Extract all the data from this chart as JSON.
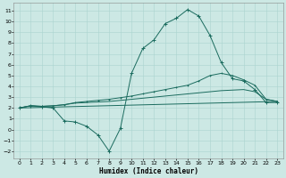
{
  "xlabel": "Humidex (Indice chaleur)",
  "bg_color": "#cce8e4",
  "grid_color": "#aad4cf",
  "line_color": "#1a6b5e",
  "xlim": [
    -0.5,
    23.5
  ],
  "ylim": [
    -2.7,
    11.7
  ],
  "xticks": [
    0,
    1,
    2,
    3,
    4,
    5,
    6,
    7,
    8,
    9,
    10,
    11,
    12,
    13,
    14,
    15,
    16,
    17,
    18,
    19,
    20,
    21,
    22,
    23
  ],
  "yticks": [
    -2,
    -1,
    0,
    1,
    2,
    3,
    4,
    5,
    6,
    7,
    8,
    9,
    10,
    11
  ],
  "line1_x": [
    0,
    1,
    2,
    3,
    4,
    5,
    6,
    7,
    8,
    9,
    10,
    11,
    12,
    13,
    14,
    15,
    16,
    17,
    18,
    19,
    20,
    21,
    22,
    23
  ],
  "line1_y": [
    2.0,
    2.2,
    2.1,
    2.0,
    0.8,
    0.7,
    0.3,
    -0.5,
    -2.0,
    0.1,
    5.2,
    7.5,
    8.3,
    9.8,
    10.3,
    11.1,
    10.5,
    8.7,
    6.2,
    4.7,
    4.5,
    3.7,
    2.5,
    2.5
  ],
  "line2_x": [
    0,
    1,
    2,
    3,
    4,
    5,
    6,
    7,
    8,
    9,
    10,
    11,
    12,
    13,
    14,
    15,
    16,
    17,
    18,
    19,
    20,
    21,
    22,
    23
  ],
  "line2_y": [
    2.0,
    2.2,
    2.15,
    2.2,
    2.3,
    2.5,
    2.6,
    2.7,
    2.8,
    2.95,
    3.1,
    3.3,
    3.5,
    3.7,
    3.9,
    4.1,
    4.5,
    5.0,
    5.2,
    5.0,
    4.6,
    4.1,
    2.8,
    2.6
  ],
  "line3_x": [
    0,
    1,
    2,
    3,
    4,
    5,
    6,
    7,
    8,
    9,
    10,
    11,
    12,
    13,
    14,
    15,
    16,
    17,
    18,
    19,
    20,
    21,
    22,
    23
  ],
  "line3_y": [
    2.0,
    2.2,
    2.15,
    2.2,
    2.3,
    2.45,
    2.5,
    2.55,
    2.6,
    2.7,
    2.8,
    2.9,
    3.0,
    3.1,
    3.2,
    3.3,
    3.4,
    3.5,
    3.6,
    3.65,
    3.7,
    3.5,
    2.8,
    2.6
  ],
  "line4_x": [
    0,
    23
  ],
  "line4_y": [
    2.0,
    2.6
  ]
}
